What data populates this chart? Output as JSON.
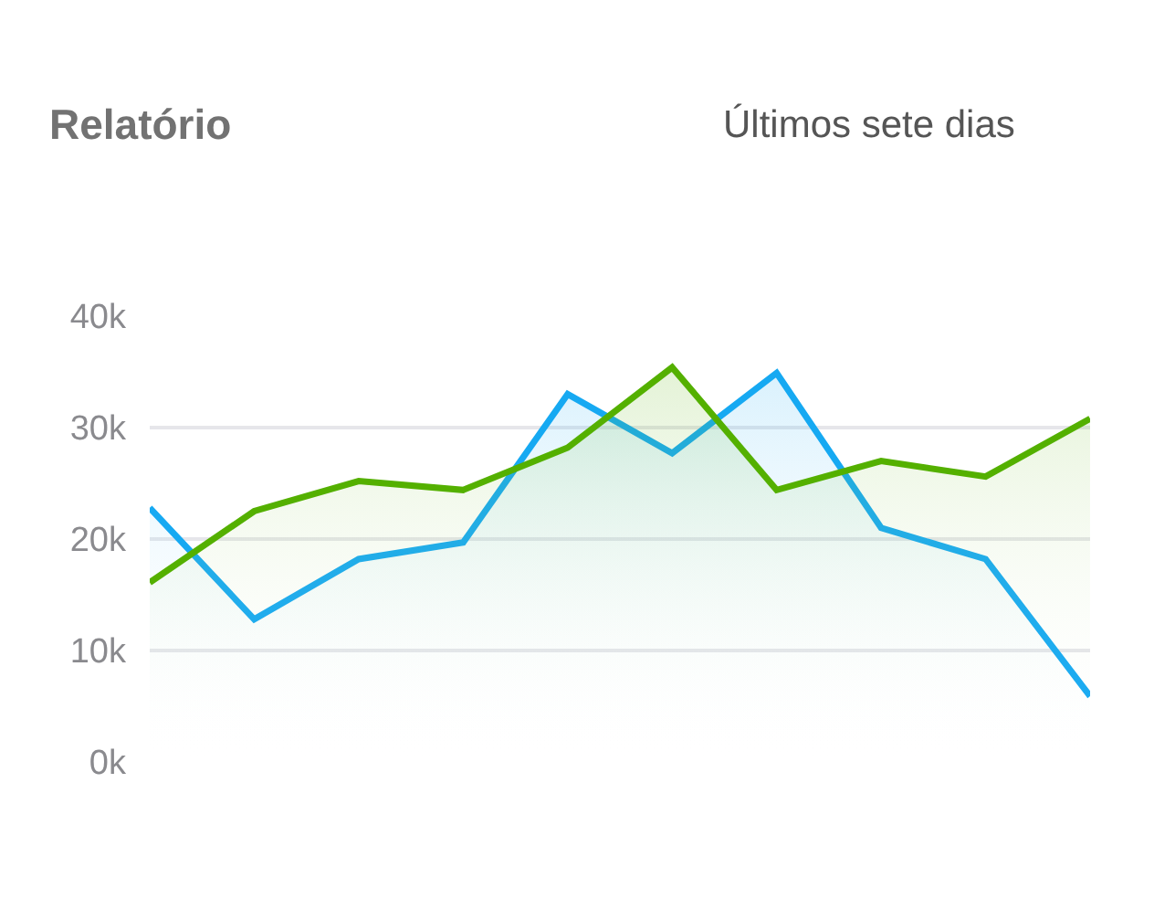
{
  "chart_data": {
    "type": "area",
    "title": "Relatório",
    "subtitle": "Últimos sete dias",
    "categories": [
      null,
      null,
      null,
      null,
      null,
      null,
      null,
      null,
      null,
      null
    ],
    "ylim": [
      0,
      40000
    ],
    "yticks": [
      {
        "value": 0,
        "label": "0k"
      },
      {
        "value": 10000,
        "label": "10k"
      },
      {
        "value": 20000,
        "label": "20k"
      },
      {
        "value": 30000,
        "label": "30k"
      },
      {
        "value": 40000,
        "label": "40k"
      }
    ],
    "tick_labels": "y",
    "grid": "y",
    "marker": "none",
    "line_style": "solid",
    "series": [
      {
        "color": "#16a9f2",
        "values": [
          22800,
          12800,
          18200,
          19700,
          33000,
          27700,
          34900,
          21000,
          18200,
          5900
        ]
      },
      {
        "color": "#54b000",
        "values": [
          16100,
          22500,
          25200,
          24400,
          28200,
          35400,
          24400,
          27000,
          25600,
          30800
        ]
      }
    ]
  }
}
